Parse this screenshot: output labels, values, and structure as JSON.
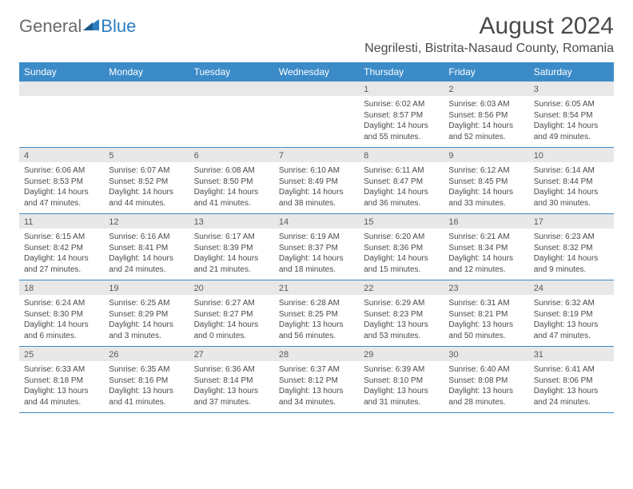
{
  "logo": {
    "general": "General",
    "blue": "Blue"
  },
  "title": "August 2024",
  "location": "Negrilesti, Bistrita-Nasaud County, Romania",
  "colors": {
    "header_bg": "#3b8bc8",
    "header_text": "#ffffff",
    "daynum_bg": "#e8e8e8",
    "text": "#4a4a4a",
    "logo_gray": "#6b6b6b",
    "logo_blue": "#2d7ec0"
  },
  "weekdays": [
    "Sunday",
    "Monday",
    "Tuesday",
    "Wednesday",
    "Thursday",
    "Friday",
    "Saturday"
  ],
  "weeks": [
    [
      {
        "n": "",
        "sunrise": "",
        "sunset": "",
        "daylight": ""
      },
      {
        "n": "",
        "sunrise": "",
        "sunset": "",
        "daylight": ""
      },
      {
        "n": "",
        "sunrise": "",
        "sunset": "",
        "daylight": ""
      },
      {
        "n": "",
        "sunrise": "",
        "sunset": "",
        "daylight": ""
      },
      {
        "n": "1",
        "sunrise": "Sunrise: 6:02 AM",
        "sunset": "Sunset: 8:57 PM",
        "daylight": "Daylight: 14 hours and 55 minutes."
      },
      {
        "n": "2",
        "sunrise": "Sunrise: 6:03 AM",
        "sunset": "Sunset: 8:56 PM",
        "daylight": "Daylight: 14 hours and 52 minutes."
      },
      {
        "n": "3",
        "sunrise": "Sunrise: 6:05 AM",
        "sunset": "Sunset: 8:54 PM",
        "daylight": "Daylight: 14 hours and 49 minutes."
      }
    ],
    [
      {
        "n": "4",
        "sunrise": "Sunrise: 6:06 AM",
        "sunset": "Sunset: 8:53 PM",
        "daylight": "Daylight: 14 hours and 47 minutes."
      },
      {
        "n": "5",
        "sunrise": "Sunrise: 6:07 AM",
        "sunset": "Sunset: 8:52 PM",
        "daylight": "Daylight: 14 hours and 44 minutes."
      },
      {
        "n": "6",
        "sunrise": "Sunrise: 6:08 AM",
        "sunset": "Sunset: 8:50 PM",
        "daylight": "Daylight: 14 hours and 41 minutes."
      },
      {
        "n": "7",
        "sunrise": "Sunrise: 6:10 AM",
        "sunset": "Sunset: 8:49 PM",
        "daylight": "Daylight: 14 hours and 38 minutes."
      },
      {
        "n": "8",
        "sunrise": "Sunrise: 6:11 AM",
        "sunset": "Sunset: 8:47 PM",
        "daylight": "Daylight: 14 hours and 36 minutes."
      },
      {
        "n": "9",
        "sunrise": "Sunrise: 6:12 AM",
        "sunset": "Sunset: 8:45 PM",
        "daylight": "Daylight: 14 hours and 33 minutes."
      },
      {
        "n": "10",
        "sunrise": "Sunrise: 6:14 AM",
        "sunset": "Sunset: 8:44 PM",
        "daylight": "Daylight: 14 hours and 30 minutes."
      }
    ],
    [
      {
        "n": "11",
        "sunrise": "Sunrise: 6:15 AM",
        "sunset": "Sunset: 8:42 PM",
        "daylight": "Daylight: 14 hours and 27 minutes."
      },
      {
        "n": "12",
        "sunrise": "Sunrise: 6:16 AM",
        "sunset": "Sunset: 8:41 PM",
        "daylight": "Daylight: 14 hours and 24 minutes."
      },
      {
        "n": "13",
        "sunrise": "Sunrise: 6:17 AM",
        "sunset": "Sunset: 8:39 PM",
        "daylight": "Daylight: 14 hours and 21 minutes."
      },
      {
        "n": "14",
        "sunrise": "Sunrise: 6:19 AM",
        "sunset": "Sunset: 8:37 PM",
        "daylight": "Daylight: 14 hours and 18 minutes."
      },
      {
        "n": "15",
        "sunrise": "Sunrise: 6:20 AM",
        "sunset": "Sunset: 8:36 PM",
        "daylight": "Daylight: 14 hours and 15 minutes."
      },
      {
        "n": "16",
        "sunrise": "Sunrise: 6:21 AM",
        "sunset": "Sunset: 8:34 PM",
        "daylight": "Daylight: 14 hours and 12 minutes."
      },
      {
        "n": "17",
        "sunrise": "Sunrise: 6:23 AM",
        "sunset": "Sunset: 8:32 PM",
        "daylight": "Daylight: 14 hours and 9 minutes."
      }
    ],
    [
      {
        "n": "18",
        "sunrise": "Sunrise: 6:24 AM",
        "sunset": "Sunset: 8:30 PM",
        "daylight": "Daylight: 14 hours and 6 minutes."
      },
      {
        "n": "19",
        "sunrise": "Sunrise: 6:25 AM",
        "sunset": "Sunset: 8:29 PM",
        "daylight": "Daylight: 14 hours and 3 minutes."
      },
      {
        "n": "20",
        "sunrise": "Sunrise: 6:27 AM",
        "sunset": "Sunset: 8:27 PM",
        "daylight": "Daylight: 14 hours and 0 minutes."
      },
      {
        "n": "21",
        "sunrise": "Sunrise: 6:28 AM",
        "sunset": "Sunset: 8:25 PM",
        "daylight": "Daylight: 13 hours and 56 minutes."
      },
      {
        "n": "22",
        "sunrise": "Sunrise: 6:29 AM",
        "sunset": "Sunset: 8:23 PM",
        "daylight": "Daylight: 13 hours and 53 minutes."
      },
      {
        "n": "23",
        "sunrise": "Sunrise: 6:31 AM",
        "sunset": "Sunset: 8:21 PM",
        "daylight": "Daylight: 13 hours and 50 minutes."
      },
      {
        "n": "24",
        "sunrise": "Sunrise: 6:32 AM",
        "sunset": "Sunset: 8:19 PM",
        "daylight": "Daylight: 13 hours and 47 minutes."
      }
    ],
    [
      {
        "n": "25",
        "sunrise": "Sunrise: 6:33 AM",
        "sunset": "Sunset: 8:18 PM",
        "daylight": "Daylight: 13 hours and 44 minutes."
      },
      {
        "n": "26",
        "sunrise": "Sunrise: 6:35 AM",
        "sunset": "Sunset: 8:16 PM",
        "daylight": "Daylight: 13 hours and 41 minutes."
      },
      {
        "n": "27",
        "sunrise": "Sunrise: 6:36 AM",
        "sunset": "Sunset: 8:14 PM",
        "daylight": "Daylight: 13 hours and 37 minutes."
      },
      {
        "n": "28",
        "sunrise": "Sunrise: 6:37 AM",
        "sunset": "Sunset: 8:12 PM",
        "daylight": "Daylight: 13 hours and 34 minutes."
      },
      {
        "n": "29",
        "sunrise": "Sunrise: 6:39 AM",
        "sunset": "Sunset: 8:10 PM",
        "daylight": "Daylight: 13 hours and 31 minutes."
      },
      {
        "n": "30",
        "sunrise": "Sunrise: 6:40 AM",
        "sunset": "Sunset: 8:08 PM",
        "daylight": "Daylight: 13 hours and 28 minutes."
      },
      {
        "n": "31",
        "sunrise": "Sunrise: 6:41 AM",
        "sunset": "Sunset: 8:06 PM",
        "daylight": "Daylight: 13 hours and 24 minutes."
      }
    ]
  ]
}
